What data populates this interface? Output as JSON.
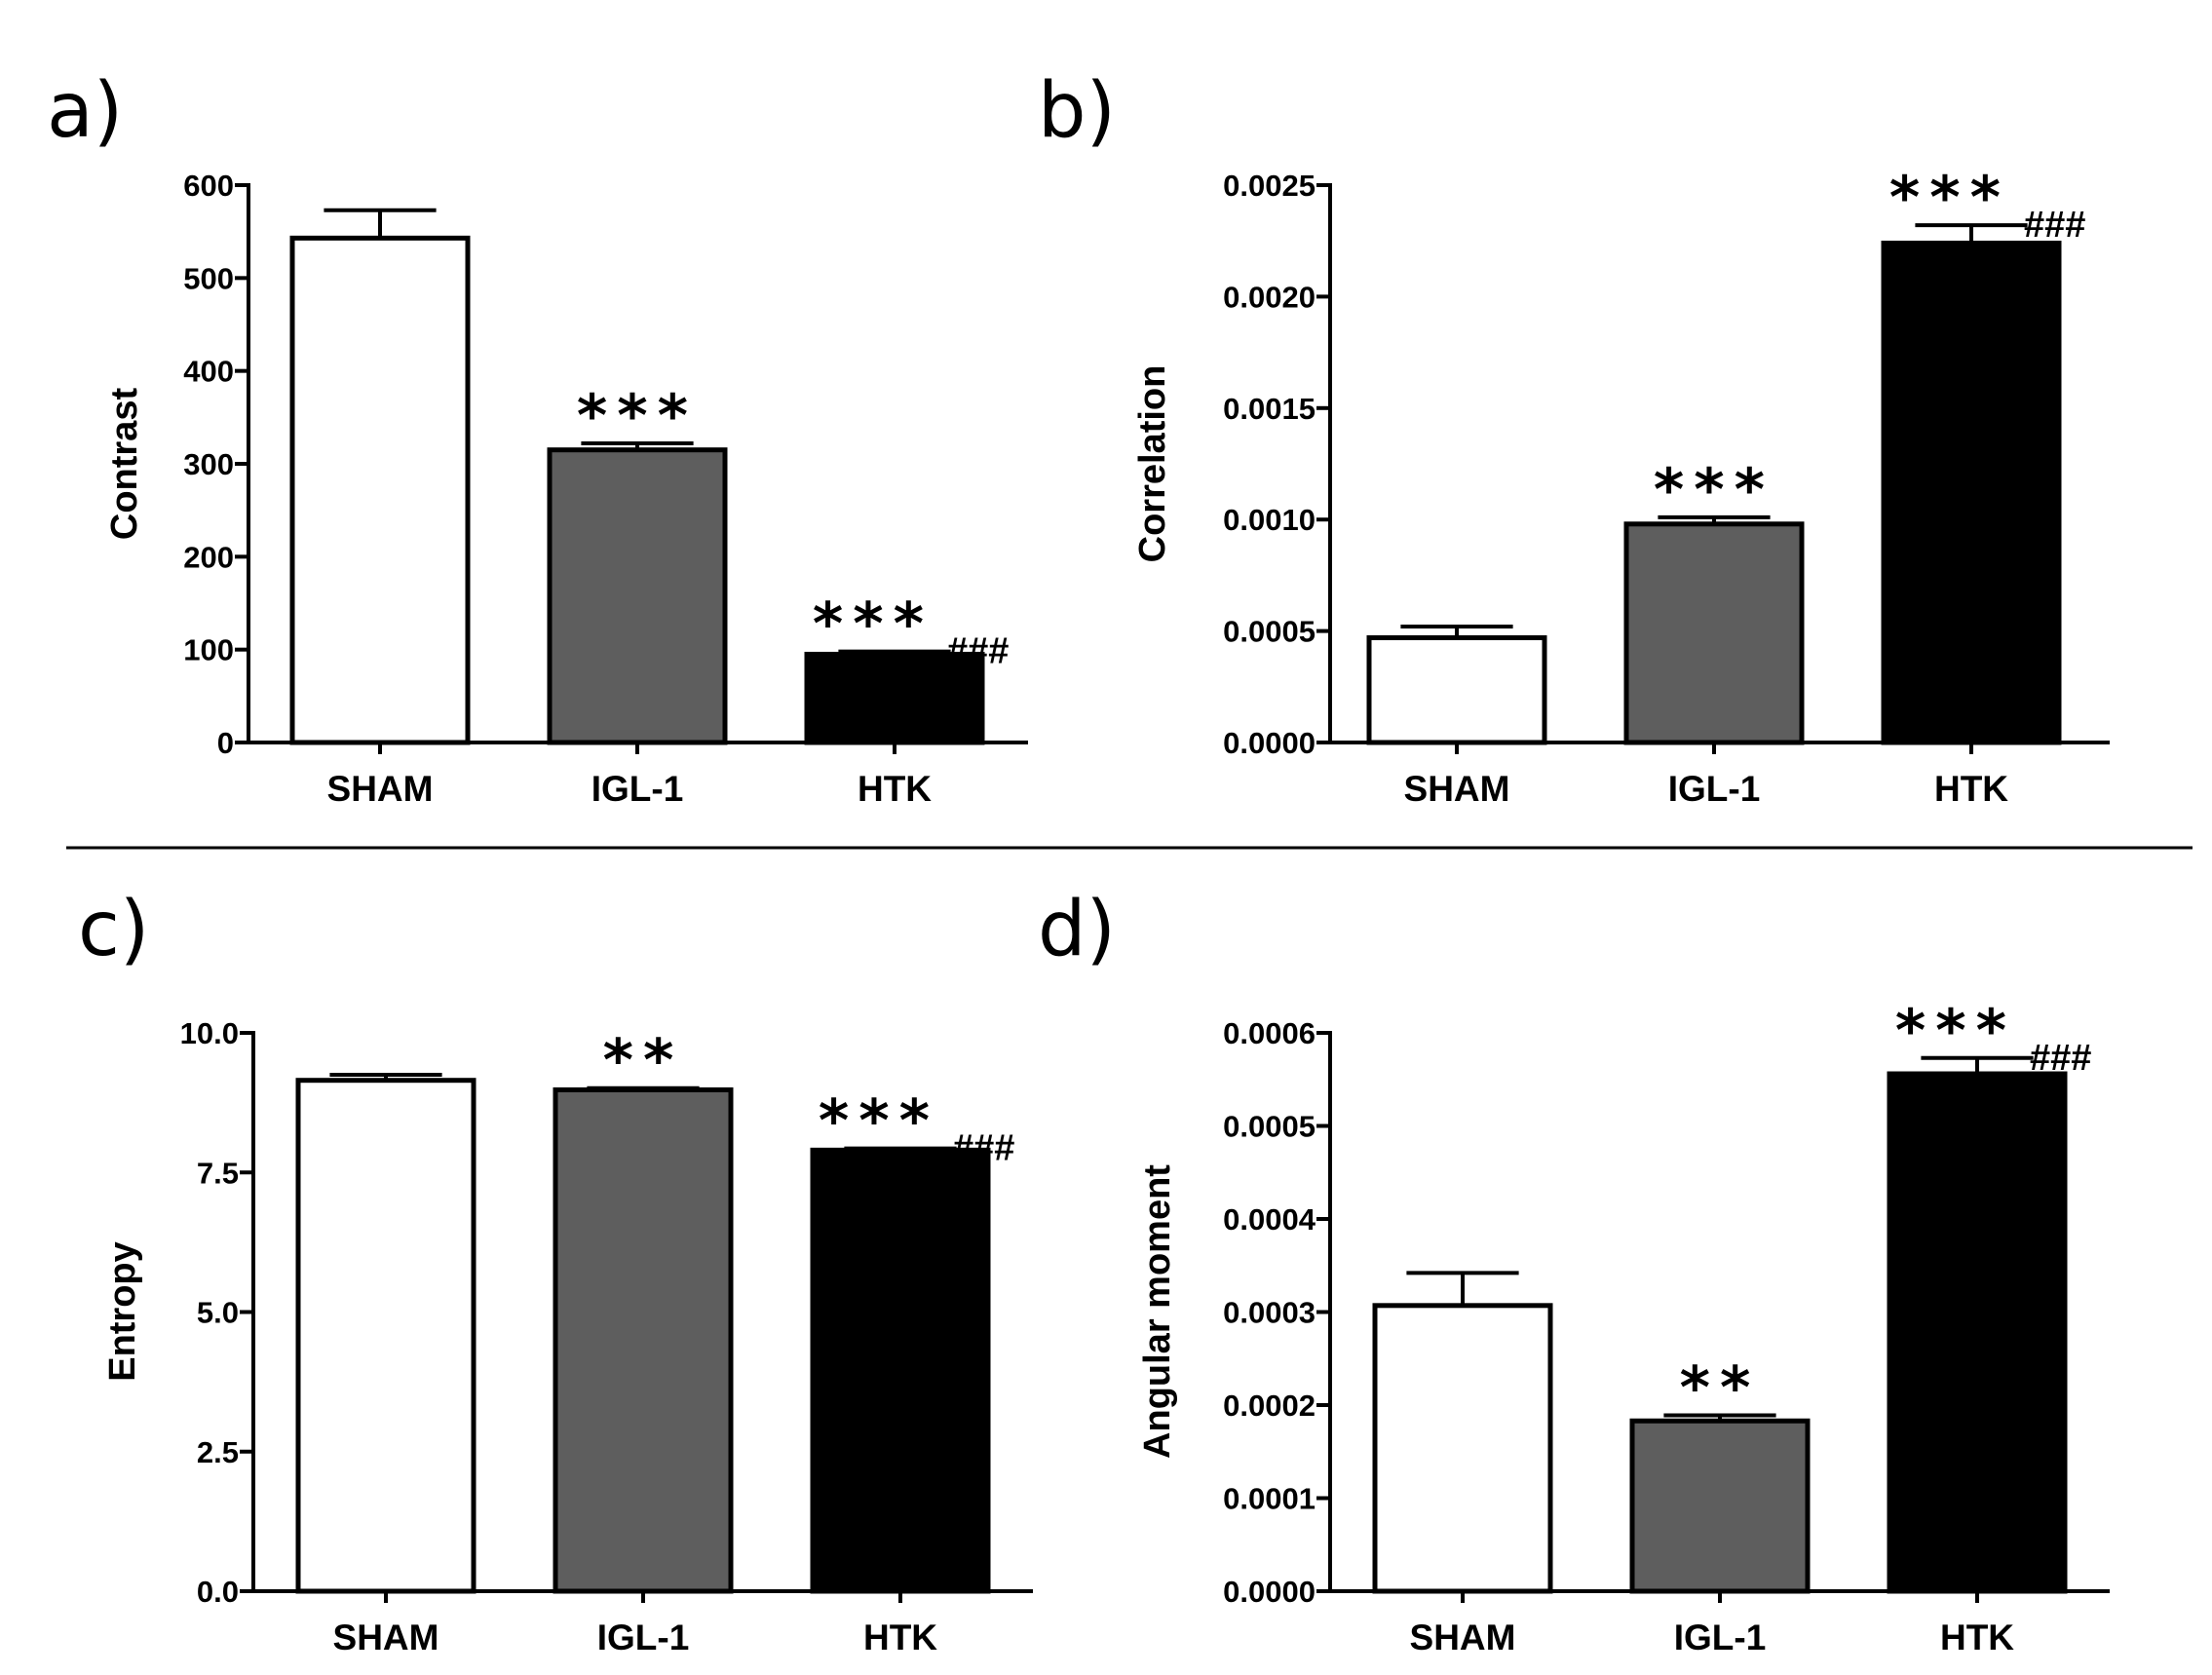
{
  "chart_data": [
    {
      "panel": "a)",
      "type": "bar",
      "categories": [
        "SHAM",
        "IGL-1",
        "HTK"
      ],
      "values": [
        543,
        315,
        95
      ],
      "errors": [
        30,
        7,
        3
      ],
      "ylabel": "Contrast",
      "xlabel": "",
      "ylim": [
        0,
        600
      ],
      "yticks": [
        "0",
        "100",
        "200",
        "300",
        "400",
        "500",
        "600"
      ],
      "yticks_values": [
        0,
        100,
        200,
        300,
        400,
        500,
        600
      ],
      "significance": [
        {
          "stars": "",
          "hashes": ""
        },
        {
          "stars": "***",
          "hashes": ""
        },
        {
          "stars": "***",
          "hashes": "###"
        }
      ],
      "bar_colors": [
        "#ffffff",
        "#5e5e5e",
        "#000000"
      ]
    },
    {
      "panel": "b)",
      "type": "bar",
      "categories": [
        "SHAM",
        "IGL-1",
        "HTK"
      ],
      "values": [
        0.00047,
        0.00098,
        0.00224
      ],
      "errors": [
        5e-05,
        3e-05,
        8e-05
      ],
      "ylabel": "Correlation",
      "xlabel": "",
      "ylim": [
        0,
        0.0025
      ],
      "yticks": [
        "0.0000",
        "0.0005",
        "0.0010",
        "0.0015",
        "0.0020",
        "0.0025"
      ],
      "yticks_values": [
        0,
        0.0005,
        0.001,
        0.0015,
        0.002,
        0.0025
      ],
      "significance": [
        {
          "stars": "",
          "hashes": ""
        },
        {
          "stars": "***",
          "hashes": ""
        },
        {
          "stars": "***",
          "hashes": "###"
        }
      ],
      "bar_colors": [
        "#ffffff",
        "#5e5e5e",
        "#000000"
      ]
    },
    {
      "panel": "c)",
      "type": "bar",
      "categories": [
        "SHAM",
        "IGL-1",
        "HTK"
      ],
      "values": [
        9.15,
        8.98,
        7.9
      ],
      "errors": [
        0.1,
        0.03,
        0.03
      ],
      "ylabel": "Entropy",
      "xlabel": "",
      "ylim": [
        0,
        10
      ],
      "yticks": [
        "0.0",
        "2.5",
        "5.0",
        "7.5",
        "10.0"
      ],
      "yticks_values": [
        0,
        2.5,
        5,
        7.5,
        10
      ],
      "significance": [
        {
          "stars": "",
          "hashes": ""
        },
        {
          "stars": "**",
          "hashes": ""
        },
        {
          "stars": "***",
          "hashes": "###"
        }
      ],
      "bar_colors": [
        "#ffffff",
        "#5e5e5e",
        "#000000"
      ]
    },
    {
      "panel": "d)",
      "type": "bar",
      "categories": [
        "SHAM",
        "IGL-1",
        "HTK"
      ],
      "values": [
        0.000307,
        0.000183,
        0.000556
      ],
      "errors": [
        3.5e-05,
        6e-06,
        1.7e-05
      ],
      "ylabel": "Angular moment",
      "xlabel": "",
      "ylim": [
        0,
        0.0006
      ],
      "yticks": [
        "0.0000",
        "0.0001",
        "0.0002",
        "0.0003",
        "0.0004",
        "0.0005",
        "0.0006"
      ],
      "yticks_values": [
        0,
        0.0001,
        0.0002,
        0.0003,
        0.0004,
        0.0005,
        0.0006
      ],
      "significance": [
        {
          "stars": "",
          "hashes": ""
        },
        {
          "stars": "**",
          "hashes": ""
        },
        {
          "stars": "***",
          "hashes": "###"
        }
      ],
      "bar_colors": [
        "#ffffff",
        "#5e5e5e",
        "#000000"
      ]
    }
  ]
}
